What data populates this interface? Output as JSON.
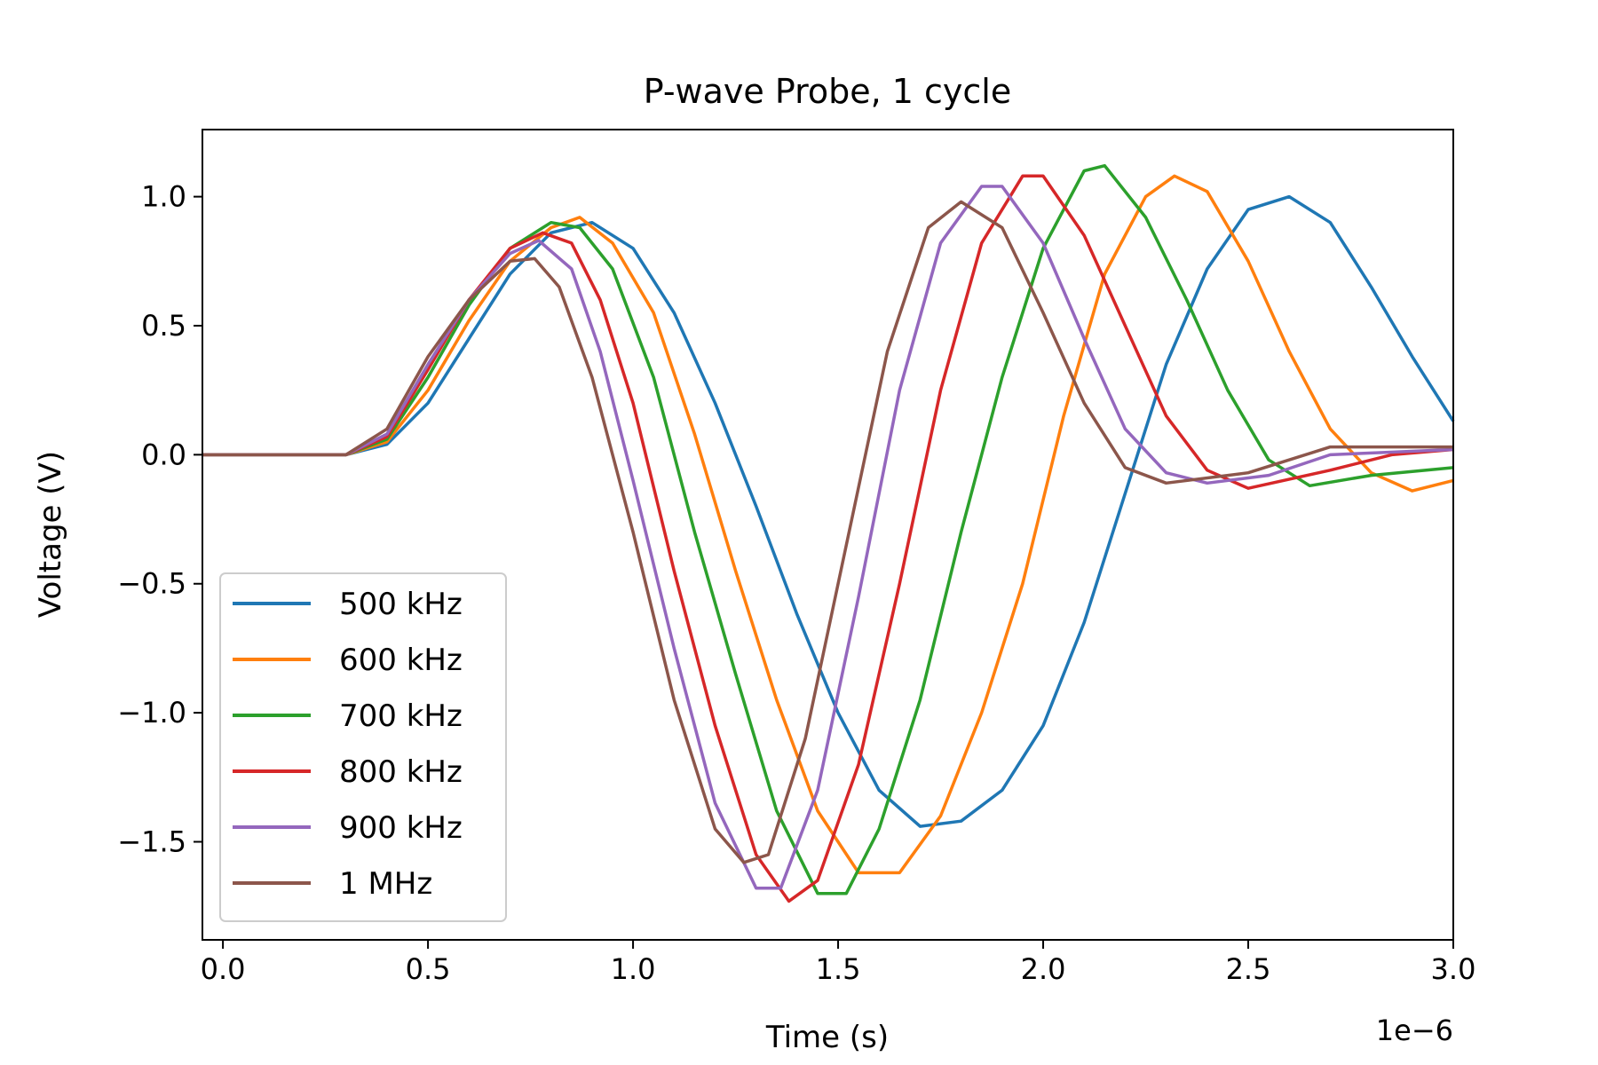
{
  "chart_data": {
    "type": "line",
    "title": "P-wave Probe, 1 cycle",
    "xlabel": "Time (s)",
    "ylabel": "Voltage (V)",
    "x_offset_label": "1e−6",
    "xlim": [
      -0.05,
      3.0
    ],
    "ylim": [
      -1.88,
      1.26
    ],
    "xticks": [
      0.0,
      0.5,
      1.0,
      1.5,
      2.0,
      2.5,
      3.0
    ],
    "xtick_labels": [
      "0.0",
      "0.5",
      "1.0",
      "1.5",
      "2.0",
      "2.5",
      "3.0"
    ],
    "yticks": [
      1.0,
      0.5,
      0.0,
      -0.5,
      -1.0,
      -1.5
    ],
    "ytick_labels": [
      "1.0",
      "0.5",
      "0.0",
      "−0.5",
      "−1.0",
      "−1.5"
    ],
    "grid": false,
    "legend_position": "lower-left",
    "series": [
      {
        "name": "500 kHz",
        "color": "#1f77b4",
        "points": [
          [
            -0.05,
            0.0
          ],
          [
            0.3,
            0.0
          ],
          [
            0.4,
            0.04
          ],
          [
            0.5,
            0.2
          ],
          [
            0.6,
            0.45
          ],
          [
            0.7,
            0.7
          ],
          [
            0.8,
            0.86
          ],
          [
            0.9,
            0.9
          ],
          [
            1.0,
            0.8
          ],
          [
            1.1,
            0.55
          ],
          [
            1.2,
            0.2
          ],
          [
            1.3,
            -0.2
          ],
          [
            1.4,
            -0.62
          ],
          [
            1.5,
            -1.0
          ],
          [
            1.6,
            -1.3
          ],
          [
            1.7,
            -1.44
          ],
          [
            1.8,
            -1.42
          ],
          [
            1.9,
            -1.3
          ],
          [
            2.0,
            -1.05
          ],
          [
            2.1,
            -0.65
          ],
          [
            2.2,
            -0.15
          ],
          [
            2.3,
            0.35
          ],
          [
            2.4,
            0.72
          ],
          [
            2.5,
            0.95
          ],
          [
            2.6,
            1.0
          ],
          [
            2.7,
            0.9
          ],
          [
            2.8,
            0.65
          ],
          [
            2.9,
            0.38
          ],
          [
            3.0,
            0.13
          ]
        ]
      },
      {
        "name": "600 kHz",
        "color": "#ff7f0e",
        "points": [
          [
            -0.05,
            0.0
          ],
          [
            0.3,
            0.0
          ],
          [
            0.4,
            0.05
          ],
          [
            0.5,
            0.25
          ],
          [
            0.6,
            0.52
          ],
          [
            0.7,
            0.75
          ],
          [
            0.8,
            0.88
          ],
          [
            0.87,
            0.92
          ],
          [
            0.95,
            0.82
          ],
          [
            1.05,
            0.55
          ],
          [
            1.15,
            0.08
          ],
          [
            1.25,
            -0.45
          ],
          [
            1.35,
            -0.95
          ],
          [
            1.45,
            -1.38
          ],
          [
            1.55,
            -1.62
          ],
          [
            1.65,
            -1.62
          ],
          [
            1.75,
            -1.4
          ],
          [
            1.85,
            -1.0
          ],
          [
            1.95,
            -0.5
          ],
          [
            2.05,
            0.15
          ],
          [
            2.15,
            0.7
          ],
          [
            2.25,
            1.0
          ],
          [
            2.32,
            1.08
          ],
          [
            2.4,
            1.02
          ],
          [
            2.5,
            0.75
          ],
          [
            2.6,
            0.4
          ],
          [
            2.7,
            0.1
          ],
          [
            2.8,
            -0.07
          ],
          [
            2.9,
            -0.14
          ],
          [
            3.0,
            -0.1
          ]
        ]
      },
      {
        "name": "700 kHz",
        "color": "#2ca02c",
        "points": [
          [
            -0.05,
            0.0
          ],
          [
            0.3,
            0.0
          ],
          [
            0.4,
            0.06
          ],
          [
            0.5,
            0.3
          ],
          [
            0.6,
            0.58
          ],
          [
            0.7,
            0.8
          ],
          [
            0.8,
            0.9
          ],
          [
            0.87,
            0.88
          ],
          [
            0.95,
            0.72
          ],
          [
            1.05,
            0.3
          ],
          [
            1.15,
            -0.3
          ],
          [
            1.25,
            -0.85
          ],
          [
            1.35,
            -1.38
          ],
          [
            1.45,
            -1.7
          ],
          [
            1.52,
            -1.7
          ],
          [
            1.6,
            -1.45
          ],
          [
            1.7,
            -0.95
          ],
          [
            1.8,
            -0.3
          ],
          [
            1.9,
            0.3
          ],
          [
            2.0,
            0.8
          ],
          [
            2.1,
            1.1
          ],
          [
            2.15,
            1.12
          ],
          [
            2.25,
            0.92
          ],
          [
            2.35,
            0.6
          ],
          [
            2.45,
            0.25
          ],
          [
            2.55,
            -0.02
          ],
          [
            2.65,
            -0.12
          ],
          [
            2.8,
            -0.08
          ],
          [
            3.0,
            -0.05
          ]
        ]
      },
      {
        "name": "800 kHz",
        "color": "#d62728",
        "points": [
          [
            -0.05,
            0.0
          ],
          [
            0.3,
            0.0
          ],
          [
            0.4,
            0.07
          ],
          [
            0.5,
            0.33
          ],
          [
            0.6,
            0.6
          ],
          [
            0.7,
            0.8
          ],
          [
            0.78,
            0.86
          ],
          [
            0.85,
            0.82
          ],
          [
            0.92,
            0.6
          ],
          [
            1.0,
            0.2
          ],
          [
            1.1,
            -0.45
          ],
          [
            1.2,
            -1.05
          ],
          [
            1.3,
            -1.55
          ],
          [
            1.38,
            -1.73
          ],
          [
            1.45,
            -1.65
          ],
          [
            1.55,
            -1.2
          ],
          [
            1.65,
            -0.5
          ],
          [
            1.75,
            0.25
          ],
          [
            1.85,
            0.82
          ],
          [
            1.95,
            1.08
          ],
          [
            2.0,
            1.08
          ],
          [
            2.1,
            0.85
          ],
          [
            2.2,
            0.5
          ],
          [
            2.3,
            0.15
          ],
          [
            2.4,
            -0.06
          ],
          [
            2.5,
            -0.13
          ],
          [
            2.7,
            -0.06
          ],
          [
            2.85,
            0.0
          ],
          [
            3.0,
            0.02
          ]
        ]
      },
      {
        "name": "900 kHz",
        "color": "#9467bd",
        "points": [
          [
            -0.05,
            0.0
          ],
          [
            0.3,
            0.0
          ],
          [
            0.4,
            0.08
          ],
          [
            0.5,
            0.35
          ],
          [
            0.6,
            0.6
          ],
          [
            0.7,
            0.78
          ],
          [
            0.77,
            0.83
          ],
          [
            0.85,
            0.72
          ],
          [
            0.92,
            0.4
          ],
          [
            1.0,
            -0.1
          ],
          [
            1.1,
            -0.75
          ],
          [
            1.2,
            -1.35
          ],
          [
            1.3,
            -1.68
          ],
          [
            1.36,
            -1.68
          ],
          [
            1.45,
            -1.3
          ],
          [
            1.55,
            -0.55
          ],
          [
            1.65,
            0.25
          ],
          [
            1.75,
            0.82
          ],
          [
            1.85,
            1.04
          ],
          [
            1.9,
            1.04
          ],
          [
            2.0,
            0.82
          ],
          [
            2.1,
            0.45
          ],
          [
            2.2,
            0.1
          ],
          [
            2.3,
            -0.07
          ],
          [
            2.4,
            -0.11
          ],
          [
            2.55,
            -0.08
          ],
          [
            2.7,
            0.0
          ],
          [
            3.0,
            0.02
          ]
        ]
      },
      {
        "name": "1 MHz",
        "color": "#8c564b",
        "points": [
          [
            -0.05,
            0.0
          ],
          [
            0.3,
            0.0
          ],
          [
            0.4,
            0.1
          ],
          [
            0.5,
            0.38
          ],
          [
            0.6,
            0.6
          ],
          [
            0.7,
            0.75
          ],
          [
            0.76,
            0.76
          ],
          [
            0.82,
            0.65
          ],
          [
            0.9,
            0.3
          ],
          [
            1.0,
            -0.3
          ],
          [
            1.1,
            -0.95
          ],
          [
            1.2,
            -1.45
          ],
          [
            1.27,
            -1.58
          ],
          [
            1.33,
            -1.55
          ],
          [
            1.42,
            -1.1
          ],
          [
            1.52,
            -0.35
          ],
          [
            1.62,
            0.4
          ],
          [
            1.72,
            0.88
          ],
          [
            1.8,
            0.98
          ],
          [
            1.9,
            0.88
          ],
          [
            2.0,
            0.55
          ],
          [
            2.1,
            0.2
          ],
          [
            2.2,
            -0.05
          ],
          [
            2.3,
            -0.11
          ],
          [
            2.5,
            -0.07
          ],
          [
            2.7,
            0.03
          ],
          [
            3.0,
            0.03
          ]
        ]
      }
    ]
  }
}
